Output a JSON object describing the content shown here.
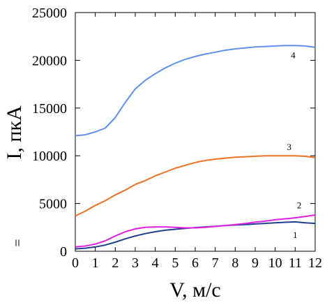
{
  "chart_data": {
    "type": "line",
    "xlabel": "V,  м/с",
    "ylabel": "I, пкА",
    "xlim": [
      0,
      12
    ],
    "ylim": [
      0,
      25000
    ],
    "x_ticks": [
      0,
      1,
      2,
      3,
      4,
      5,
      6,
      7,
      8,
      9,
      10,
      11,
      12
    ],
    "y_ticks": [
      0,
      5000,
      10000,
      15000,
      20000,
      25000
    ],
    "grid": false,
    "stray_mark": "=",
    "series": [
      {
        "name": "1",
        "color": "#1f3f8f",
        "x": [
          0,
          0.5,
          1,
          1.5,
          2,
          2.5,
          3,
          3.5,
          4,
          4.5,
          5,
          5.5,
          6,
          6.5,
          7,
          7.5,
          8,
          8.5,
          9,
          9.5,
          10,
          10.5,
          11,
          11.5,
          12
        ],
        "y": [
          250,
          320,
          450,
          650,
          950,
          1300,
          1600,
          1850,
          2050,
          2200,
          2300,
          2400,
          2480,
          2550,
          2620,
          2680,
          2750,
          2800,
          2860,
          2920,
          2980,
          3030,
          3080,
          2980,
          2920
        ]
      },
      {
        "name": "2",
        "color": "#e020e0",
        "x": [
          0,
          0.5,
          1,
          1.5,
          2,
          2.5,
          3,
          3.5,
          4,
          4.5,
          5,
          5.5,
          6,
          6.5,
          7,
          7.5,
          8,
          8.5,
          9,
          9.5,
          10,
          10.5,
          11,
          11.5,
          12
        ],
        "y": [
          450,
          550,
          750,
          1100,
          1600,
          2050,
          2350,
          2500,
          2550,
          2550,
          2500,
          2450,
          2450,
          2500,
          2600,
          2700,
          2800,
          2900,
          3050,
          3150,
          3300,
          3400,
          3500,
          3650,
          3800
        ]
      },
      {
        "name": "3",
        "color": "#ef7020",
        "x": [
          0,
          0.5,
          1,
          1.5,
          2,
          2.5,
          3,
          3.5,
          4,
          4.5,
          5,
          5.5,
          6,
          6.5,
          7,
          7.5,
          8,
          8.5,
          9,
          9.5,
          10,
          10.5,
          11,
          11.5,
          12
        ],
        "y": [
          3700,
          4200,
          4800,
          5300,
          5900,
          6400,
          7000,
          7400,
          7900,
          8300,
          8700,
          9000,
          9300,
          9500,
          9650,
          9750,
          9850,
          9900,
          9950,
          10000,
          10000,
          10000,
          10000,
          9950,
          9800
        ]
      },
      {
        "name": "4",
        "color": "#5f90ea",
        "x": [
          0,
          0.5,
          1,
          1.5,
          2,
          2.5,
          3,
          3.5,
          4,
          4.5,
          5,
          5.5,
          6,
          6.5,
          7,
          7.5,
          8,
          8.5,
          9,
          9.5,
          10,
          10.5,
          11,
          11.5,
          12
        ],
        "y": [
          12100,
          12200,
          12500,
          12900,
          14000,
          15600,
          17000,
          17900,
          18600,
          19200,
          19700,
          20100,
          20400,
          20650,
          20850,
          21050,
          21200,
          21300,
          21400,
          21450,
          21500,
          21550,
          21550,
          21500,
          21350
        ]
      }
    ]
  }
}
